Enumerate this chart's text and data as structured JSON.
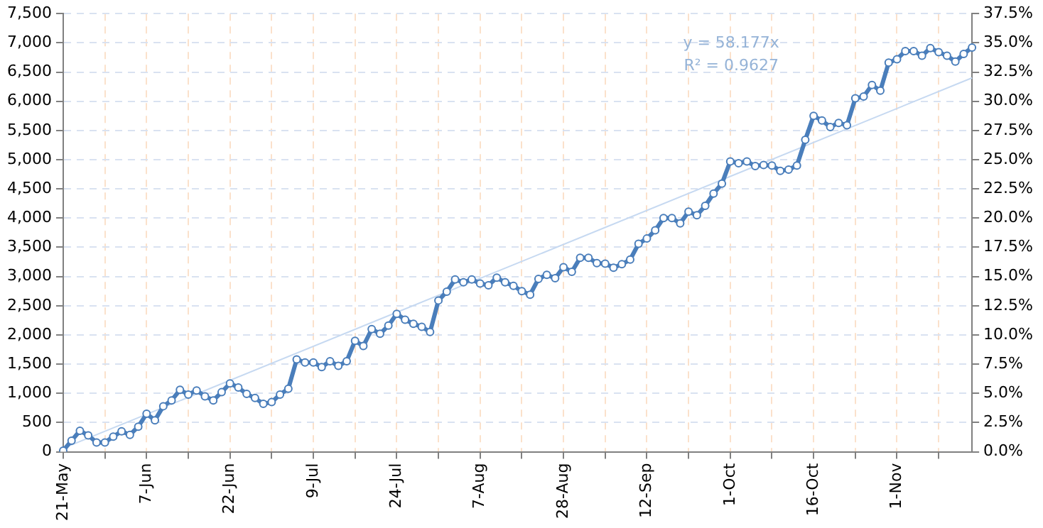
{
  "chart_data": {
    "type": "line",
    "categories": [
      "21-May",
      null,
      null,
      null,
      null,
      null,
      null,
      null,
      null,
      null,
      "7-Jun",
      null,
      null,
      null,
      null,
      null,
      null,
      null,
      null,
      null,
      "22-Jun",
      null,
      null,
      null,
      null,
      null,
      null,
      null,
      null,
      null,
      "9-Jul",
      null,
      null,
      null,
      null,
      null,
      null,
      null,
      null,
      null,
      "24-Jul",
      null,
      null,
      null,
      null,
      null,
      null,
      null,
      null,
      null,
      "7-Aug",
      null,
      null,
      null,
      null,
      null,
      null,
      null,
      null,
      null,
      "28-Aug",
      null,
      null,
      null,
      null,
      null,
      null,
      null,
      null,
      null,
      "12-Sep",
      null,
      null,
      null,
      null,
      null,
      null,
      null,
      null,
      null,
      "1-Oct",
      null,
      null,
      null,
      null,
      null,
      null,
      null,
      null,
      null,
      "16-Oct",
      null,
      null,
      null,
      null,
      null,
      null,
      null,
      null,
      null,
      "1-Nov",
      null,
      null,
      null,
      null,
      null,
      null,
      null,
      null,
      null
    ],
    "series": [
      {
        "color": "#4a7ebb",
        "marker": "circle",
        "values": [
          20,
          190,
          360,
          280,
          160,
          160,
          260,
          350,
          290,
          430,
          650,
          540,
          780,
          880,
          1060,
          980,
          1050,
          950,
          880,
          1020,
          1170,
          1100,
          990,
          920,
          820,
          850,
          980,
          1080,
          1580,
          1530,
          1530,
          1450,
          1550,
          1470,
          1550,
          1900,
          1810,
          2100,
          2020,
          2160,
          2360,
          2260,
          2190,
          2140,
          2050,
          2590,
          2740,
          2950,
          2900,
          2950,
          2880,
          2850,
          2980,
          2900,
          2840,
          2750,
          2690,
          2960,
          3030,
          2970,
          3160,
          3080,
          3320,
          3320,
          3230,
          3220,
          3150,
          3210,
          3290,
          3560,
          3650,
          3790,
          4000,
          4000,
          3910,
          4110,
          4050,
          4210,
          4420,
          4590,
          4970,
          4940,
          4970,
          4890,
          4910,
          4900,
          4810,
          4830,
          4900,
          5340,
          5750,
          5670,
          5560,
          5630,
          5590,
          6050,
          6080,
          6280,
          6180,
          6660,
          6720,
          6860,
          6860,
          6780,
          6910,
          6840,
          6780,
          6680,
          6810,
          6920
        ]
      },
      {
        "type": "line",
        "color": "#c6d9f1",
        "marker": "none",
        "values": [
          60,
          null,
          null,
          null,
          null,
          null,
          null,
          null,
          null,
          null,
          null,
          null,
          null,
          null,
          null,
          null,
          null,
          null,
          null,
          null,
          null,
          null,
          null,
          null,
          null,
          null,
          null,
          null,
          null,
          null,
          null,
          null,
          null,
          null,
          null,
          null,
          null,
          null,
          null,
          null,
          null,
          null,
          null,
          null,
          null,
          null,
          null,
          null,
          null,
          null,
          null,
          null,
          null,
          null,
          null,
          null,
          null,
          null,
          null,
          null,
          null,
          null,
          null,
          null,
          null,
          null,
          null,
          null,
          null,
          null,
          null,
          null,
          null,
          null,
          null,
          null,
          null,
          null,
          null,
          null,
          null,
          null,
          null,
          null,
          null,
          null,
          null,
          null,
          null,
          null,
          null,
          null,
          null,
          null,
          null,
          null,
          null,
          null,
          null,
          null,
          null,
          null,
          null,
          null,
          null,
          null,
          null,
          null,
          null,
          6400
        ]
      }
    ],
    "ylim": [
      0,
      7500
    ],
    "yticks": [
      0,
      500,
      {
        "value": 1000,
        "label": "1,000"
      },
      {
        "value": 1500,
        "label": "1,500"
      },
      {
        "value": 2000,
        "label": "2,000"
      },
      {
        "value": 2500,
        "label": "2,500"
      },
      {
        "value": 3000,
        "label": "3,000"
      },
      {
        "value": 3500,
        "label": "3,500"
      },
      {
        "value": 4000,
        "label": "4,000"
      },
      {
        "value": 4500,
        "label": "4,500"
      },
      {
        "value": 5000,
        "label": "5,000"
      },
      {
        "value": 5500,
        "label": "5,500"
      },
      {
        "value": 6000,
        "label": "6,000"
      },
      {
        "value": 6500,
        "label": "6,500"
      },
      {
        "value": 7000,
        "label": "7,000"
      },
      {
        "value": 7500,
        "label": "7,500"
      }
    ],
    "y2lim": [
      0,
      37.5
    ],
    "y2ticks": [
      {
        "value": 0,
        "label": "0.0%"
      },
      {
        "value": 2.5,
        "label": "2.5%"
      },
      {
        "value": 5,
        "label": "5.0%"
      },
      {
        "value": 7.5,
        "label": "7.5%"
      },
      {
        "value": 10,
        "label": "10.0%"
      },
      {
        "value": 12.5,
        "label": "12.5%"
      },
      {
        "value": 15,
        "label": "15.0%"
      },
      {
        "value": 17.5,
        "label": "17.5%"
      },
      {
        "value": 20,
        "label": "20.0%"
      },
      {
        "value": 22.5,
        "label": "22.5%"
      },
      {
        "value": 25,
        "label": "25.0%"
      },
      {
        "value": 27.5,
        "label": "27.5%"
      },
      {
        "value": 30,
        "label": "30.0%"
      },
      {
        "value": 32.5,
        "label": "32.5%"
      },
      {
        "value": 35,
        "label": "35.0%"
      },
      {
        "value": 37.5,
        "label": "37.5%"
      }
    ],
    "annotations": [
      "y = 58.177x",
      "R² = 0.9627"
    ],
    "grid": true,
    "legend": false
  }
}
